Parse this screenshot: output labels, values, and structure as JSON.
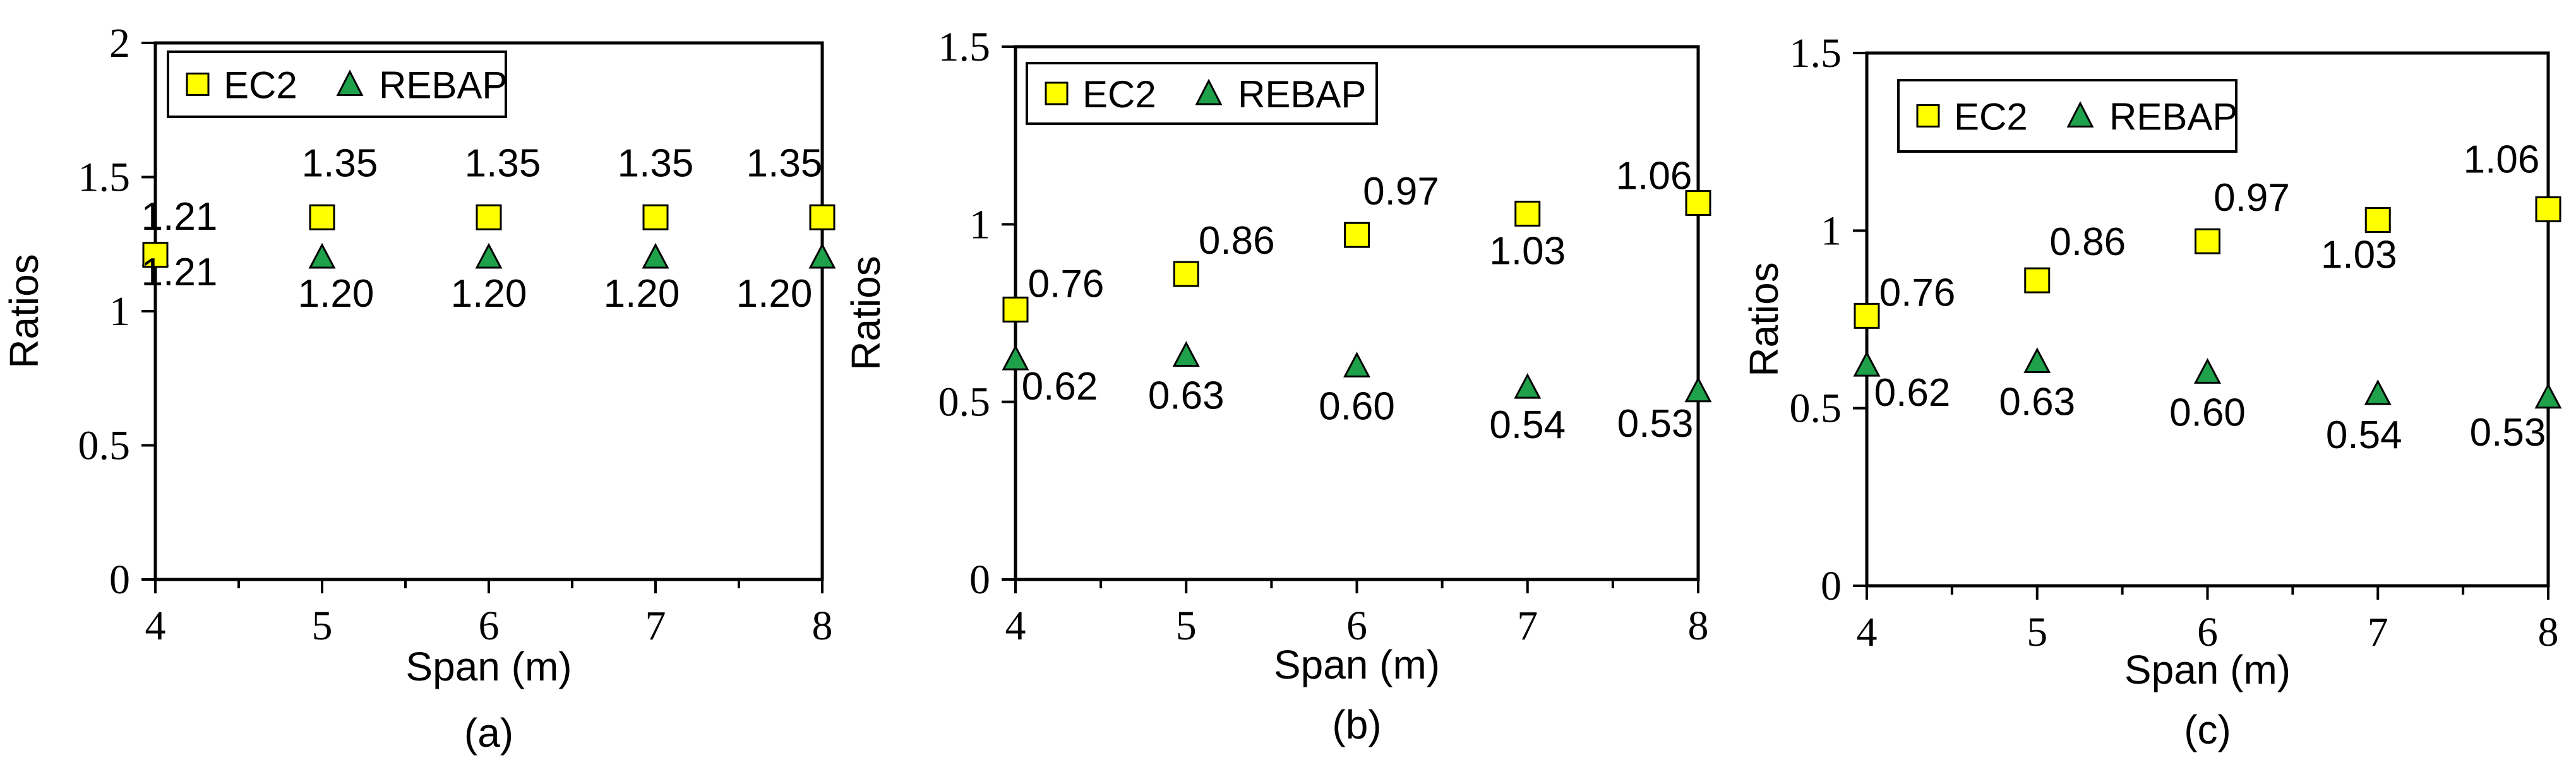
{
  "chart_data": [
    {
      "type": "scatter",
      "panel_caption": "(a)",
      "xlabel": "Span (m)",
      "ylabel": "Ratios",
      "xlim": [
        4,
        8
      ],
      "ylim": [
        0,
        2
      ],
      "xticks": [
        "4",
        "5",
        "6",
        "7",
        "8"
      ],
      "yticks": [
        "0",
        "0.5",
        "1",
        "1.5",
        "2"
      ],
      "legend_position": "top-left",
      "x": [
        4,
        5,
        6,
        7,
        8
      ],
      "series": [
        {
          "name": "EC2",
          "marker": "square",
          "color": "#FFFF00",
          "values": [
            1.21,
            1.35,
            1.35,
            1.35,
            1.35
          ],
          "labels": [
            "1.21",
            "1.35",
            "1.35",
            "1.35",
            "1.35"
          ]
        },
        {
          "name": "REBAP",
          "marker": "triangle",
          "color": "#1FA04A",
          "values": [
            1.21,
            1.2,
            1.2,
            1.2,
            1.2
          ],
          "labels": [
            "1.21",
            "1.20",
            "1.20",
            "1.20",
            "1.20"
          ]
        }
      ]
    },
    {
      "type": "scatter",
      "panel_caption": "(b)",
      "xlabel": "Span (m)",
      "ylabel": "Ratios",
      "xlim": [
        4,
        8
      ],
      "ylim": [
        0,
        1.5
      ],
      "xticks": [
        "4",
        "5",
        "6",
        "7",
        "8"
      ],
      "yticks": [
        "0",
        "0.5",
        "1",
        "1.5"
      ],
      "legend_position": "top-left",
      "x": [
        4,
        5,
        6,
        7,
        8
      ],
      "series": [
        {
          "name": "EC2",
          "marker": "square",
          "color": "#FFFF00",
          "values": [
            0.76,
            0.86,
            0.97,
            1.03,
            1.06
          ],
          "labels": [
            "0.76",
            "0.86",
            "0.97",
            "1.03",
            "1.06"
          ]
        },
        {
          "name": "REBAP",
          "marker": "triangle",
          "color": "#1FA04A",
          "values": [
            0.62,
            0.63,
            0.6,
            0.54,
            0.53
          ],
          "labels": [
            "0.62",
            "0.63",
            "0.60",
            "0.54",
            "0.53"
          ]
        }
      ]
    },
    {
      "type": "scatter",
      "panel_caption": "(c)",
      "xlabel": "Span (m)",
      "ylabel": "Ratios",
      "xlim": [
        4,
        8
      ],
      "ylim": [
        0,
        1.5
      ],
      "xticks": [
        "4",
        "5",
        "6",
        "7",
        "8"
      ],
      "yticks": [
        "0",
        "0.5",
        "1",
        "1.5"
      ],
      "legend_position": "top-left",
      "x": [
        4,
        5,
        6,
        7,
        8
      ],
      "series": [
        {
          "name": "EC2",
          "marker": "square",
          "color": "#FFFF00",
          "values": [
            0.76,
            0.86,
            0.97,
            1.03,
            1.06
          ],
          "labels": [
            "0.76",
            "0.86",
            "0.97",
            "1.03",
            "1.06"
          ]
        },
        {
          "name": "REBAP",
          "marker": "triangle",
          "color": "#1FA04A",
          "values": [
            0.62,
            0.63,
            0.6,
            0.54,
            0.53
          ],
          "labels": [
            "0.62",
            "0.63",
            "0.60",
            "0.54",
            "0.53"
          ]
        }
      ]
    }
  ]
}
